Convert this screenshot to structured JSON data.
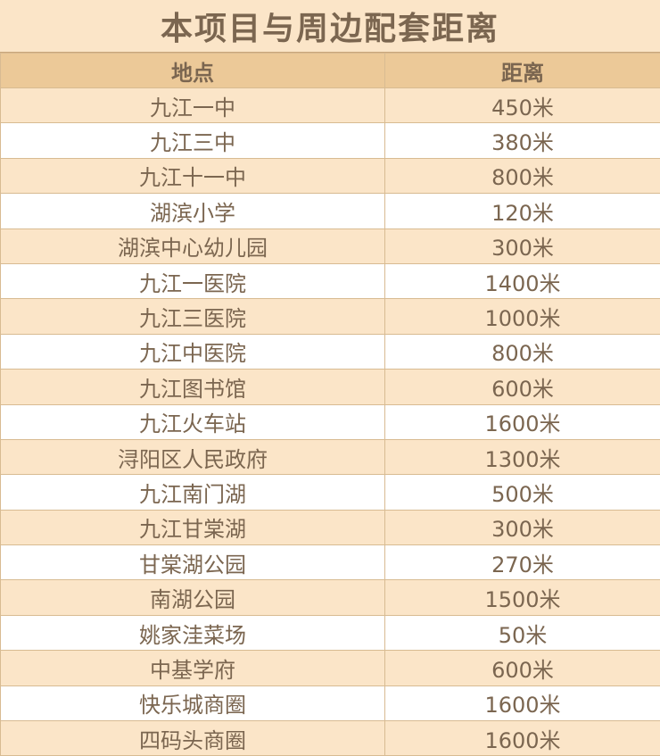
{
  "title": "本项目与周边配套距离",
  "headers": [
    "地点",
    "距离"
  ],
  "colors": {
    "title_bg": "#fbe5c8",
    "header_bg": "#ecc998",
    "row_alt_bg": "#fbe5c8",
    "text": "#7b6650"
  },
  "rows": [
    {
      "place": "九江一中",
      "distance": "450米"
    },
    {
      "place": "九江三中",
      "distance": "380米"
    },
    {
      "place": "九江十一中",
      "distance": "800米"
    },
    {
      "place": "湖滨小学",
      "distance": "120米"
    },
    {
      "place": "湖滨中心幼儿园",
      "distance": "300米"
    },
    {
      "place": "九江一医院",
      "distance": "1400米"
    },
    {
      "place": "九江三医院",
      "distance": "1000米"
    },
    {
      "place": "九江中医院",
      "distance": "800米"
    },
    {
      "place": "九江图书馆",
      "distance": "600米"
    },
    {
      "place": "九江火车站",
      "distance": "1600米"
    },
    {
      "place": "浔阳区人民政府",
      "distance": "1300米"
    },
    {
      "place": "九江南门湖",
      "distance": "500米"
    },
    {
      "place": "九江甘棠湖",
      "distance": "300米"
    },
    {
      "place": "甘棠湖公园",
      "distance": "270米"
    },
    {
      "place": "南湖公园",
      "distance": "1500米"
    },
    {
      "place": "姚家洼菜场",
      "distance": "50米"
    },
    {
      "place": "中基学府",
      "distance": "600米"
    },
    {
      "place": "快乐城商圈",
      "distance": "1600米"
    },
    {
      "place": "四码头商圈",
      "distance": "1600米"
    }
  ]
}
